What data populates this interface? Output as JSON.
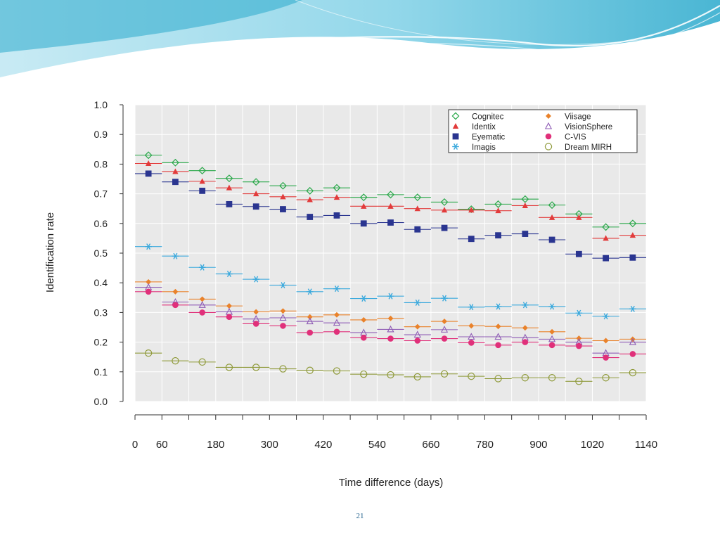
{
  "slide_number": "21",
  "colors": {
    "banner_light": "#bfe7f2",
    "banner_mid": "#7fd0e6",
    "banner_dark": "#2aa9cc"
  },
  "chart_data": {
    "type": "scatter",
    "xlabel": "Time difference (days)",
    "ylabel": "Identification rate",
    "xlim": [
      0,
      1140
    ],
    "ylim": [
      0.0,
      1.0
    ],
    "x_ticks": [
      0,
      60,
      180,
      300,
      420,
      540,
      660,
      780,
      900,
      1020,
      1140
    ],
    "y_ticks": [
      "0.0",
      "0.1",
      "0.2",
      "0.3",
      "0.4",
      "0.5",
      "0.6",
      "0.7",
      "0.8",
      "0.9",
      "1.0"
    ],
    "bin_edges": [
      0,
      60,
      120,
      180,
      240,
      300,
      360,
      420,
      480,
      540,
      600,
      660,
      720,
      780,
      840,
      900,
      960,
      1020,
      1080,
      1140
    ],
    "x": [
      30,
      90,
      150,
      210,
      270,
      330,
      390,
      450,
      510,
      570,
      630,
      690,
      750,
      810,
      870,
      930,
      990,
      1050,
      1110
    ],
    "legend_position": "top-right",
    "grid": true,
    "series": [
      {
        "name": "Cognitec",
        "marker": "diamond-open",
        "color": "#2aa84a",
        "values": [
          0.83,
          0.805,
          0.778,
          0.752,
          0.74,
          0.727,
          0.71,
          0.72,
          0.688,
          0.697,
          0.688,
          0.672,
          0.648,
          0.665,
          0.682,
          0.662,
          0.632,
          0.588,
          0.6
        ]
      },
      {
        "name": "Viisage",
        "marker": "diamond-filled",
        "color": "#e9822b",
        "values": [
          0.403,
          0.37,
          0.345,
          0.322,
          0.302,
          0.305,
          0.285,
          0.292,
          0.275,
          0.28,
          0.252,
          0.27,
          0.255,
          0.253,
          0.248,
          0.235,
          0.213,
          0.205,
          0.21
        ]
      },
      {
        "name": "Identix",
        "marker": "triangle-filled",
        "color": "#e23b3b",
        "values": [
          0.802,
          0.775,
          0.742,
          0.72,
          0.7,
          0.69,
          0.68,
          0.688,
          0.658,
          0.658,
          0.65,
          0.645,
          0.645,
          0.643,
          0.66,
          0.62,
          0.62,
          0.55,
          0.56
        ]
      },
      {
        "name": "VisionSphere",
        "marker": "triangle-open",
        "color": "#8e5bb5",
        "values": [
          0.385,
          0.335,
          0.325,
          0.302,
          0.278,
          0.282,
          0.27,
          0.265,
          0.232,
          0.243,
          0.225,
          0.242,
          0.218,
          0.218,
          0.215,
          0.21,
          0.2,
          0.163,
          0.2
        ]
      },
      {
        "name": "Eyematic",
        "marker": "square-filled",
        "color": "#2a3590",
        "values": [
          0.768,
          0.74,
          0.71,
          0.665,
          0.657,
          0.648,
          0.622,
          0.627,
          0.6,
          0.603,
          0.58,
          0.585,
          0.548,
          0.56,
          0.565,
          0.545,
          0.497,
          0.483,
          0.485
        ]
      },
      {
        "name": "C-VIS",
        "marker": "circle-filled",
        "color": "#e0307a",
        "values": [
          0.37,
          0.325,
          0.3,
          0.285,
          0.262,
          0.255,
          0.232,
          0.235,
          0.215,
          0.212,
          0.205,
          0.212,
          0.198,
          0.19,
          0.2,
          0.19,
          0.187,
          0.148,
          0.16
        ]
      },
      {
        "name": "Imagis",
        "marker": "asterisk",
        "color": "#3aa9dd",
        "values": [
          0.522,
          0.49,
          0.452,
          0.43,
          0.412,
          0.392,
          0.37,
          0.38,
          0.347,
          0.355,
          0.333,
          0.348,
          0.318,
          0.32,
          0.325,
          0.32,
          0.298,
          0.287,
          0.312
        ]
      },
      {
        "name": "Dream MIRH",
        "marker": "circle-open",
        "color": "#8f9a3a",
        "values": [
          0.163,
          0.137,
          0.133,
          0.115,
          0.115,
          0.11,
          0.105,
          0.103,
          0.092,
          0.09,
          0.083,
          0.093,
          0.085,
          0.077,
          0.08,
          0.08,
          0.068,
          0.08,
          0.097
        ]
      }
    ]
  }
}
